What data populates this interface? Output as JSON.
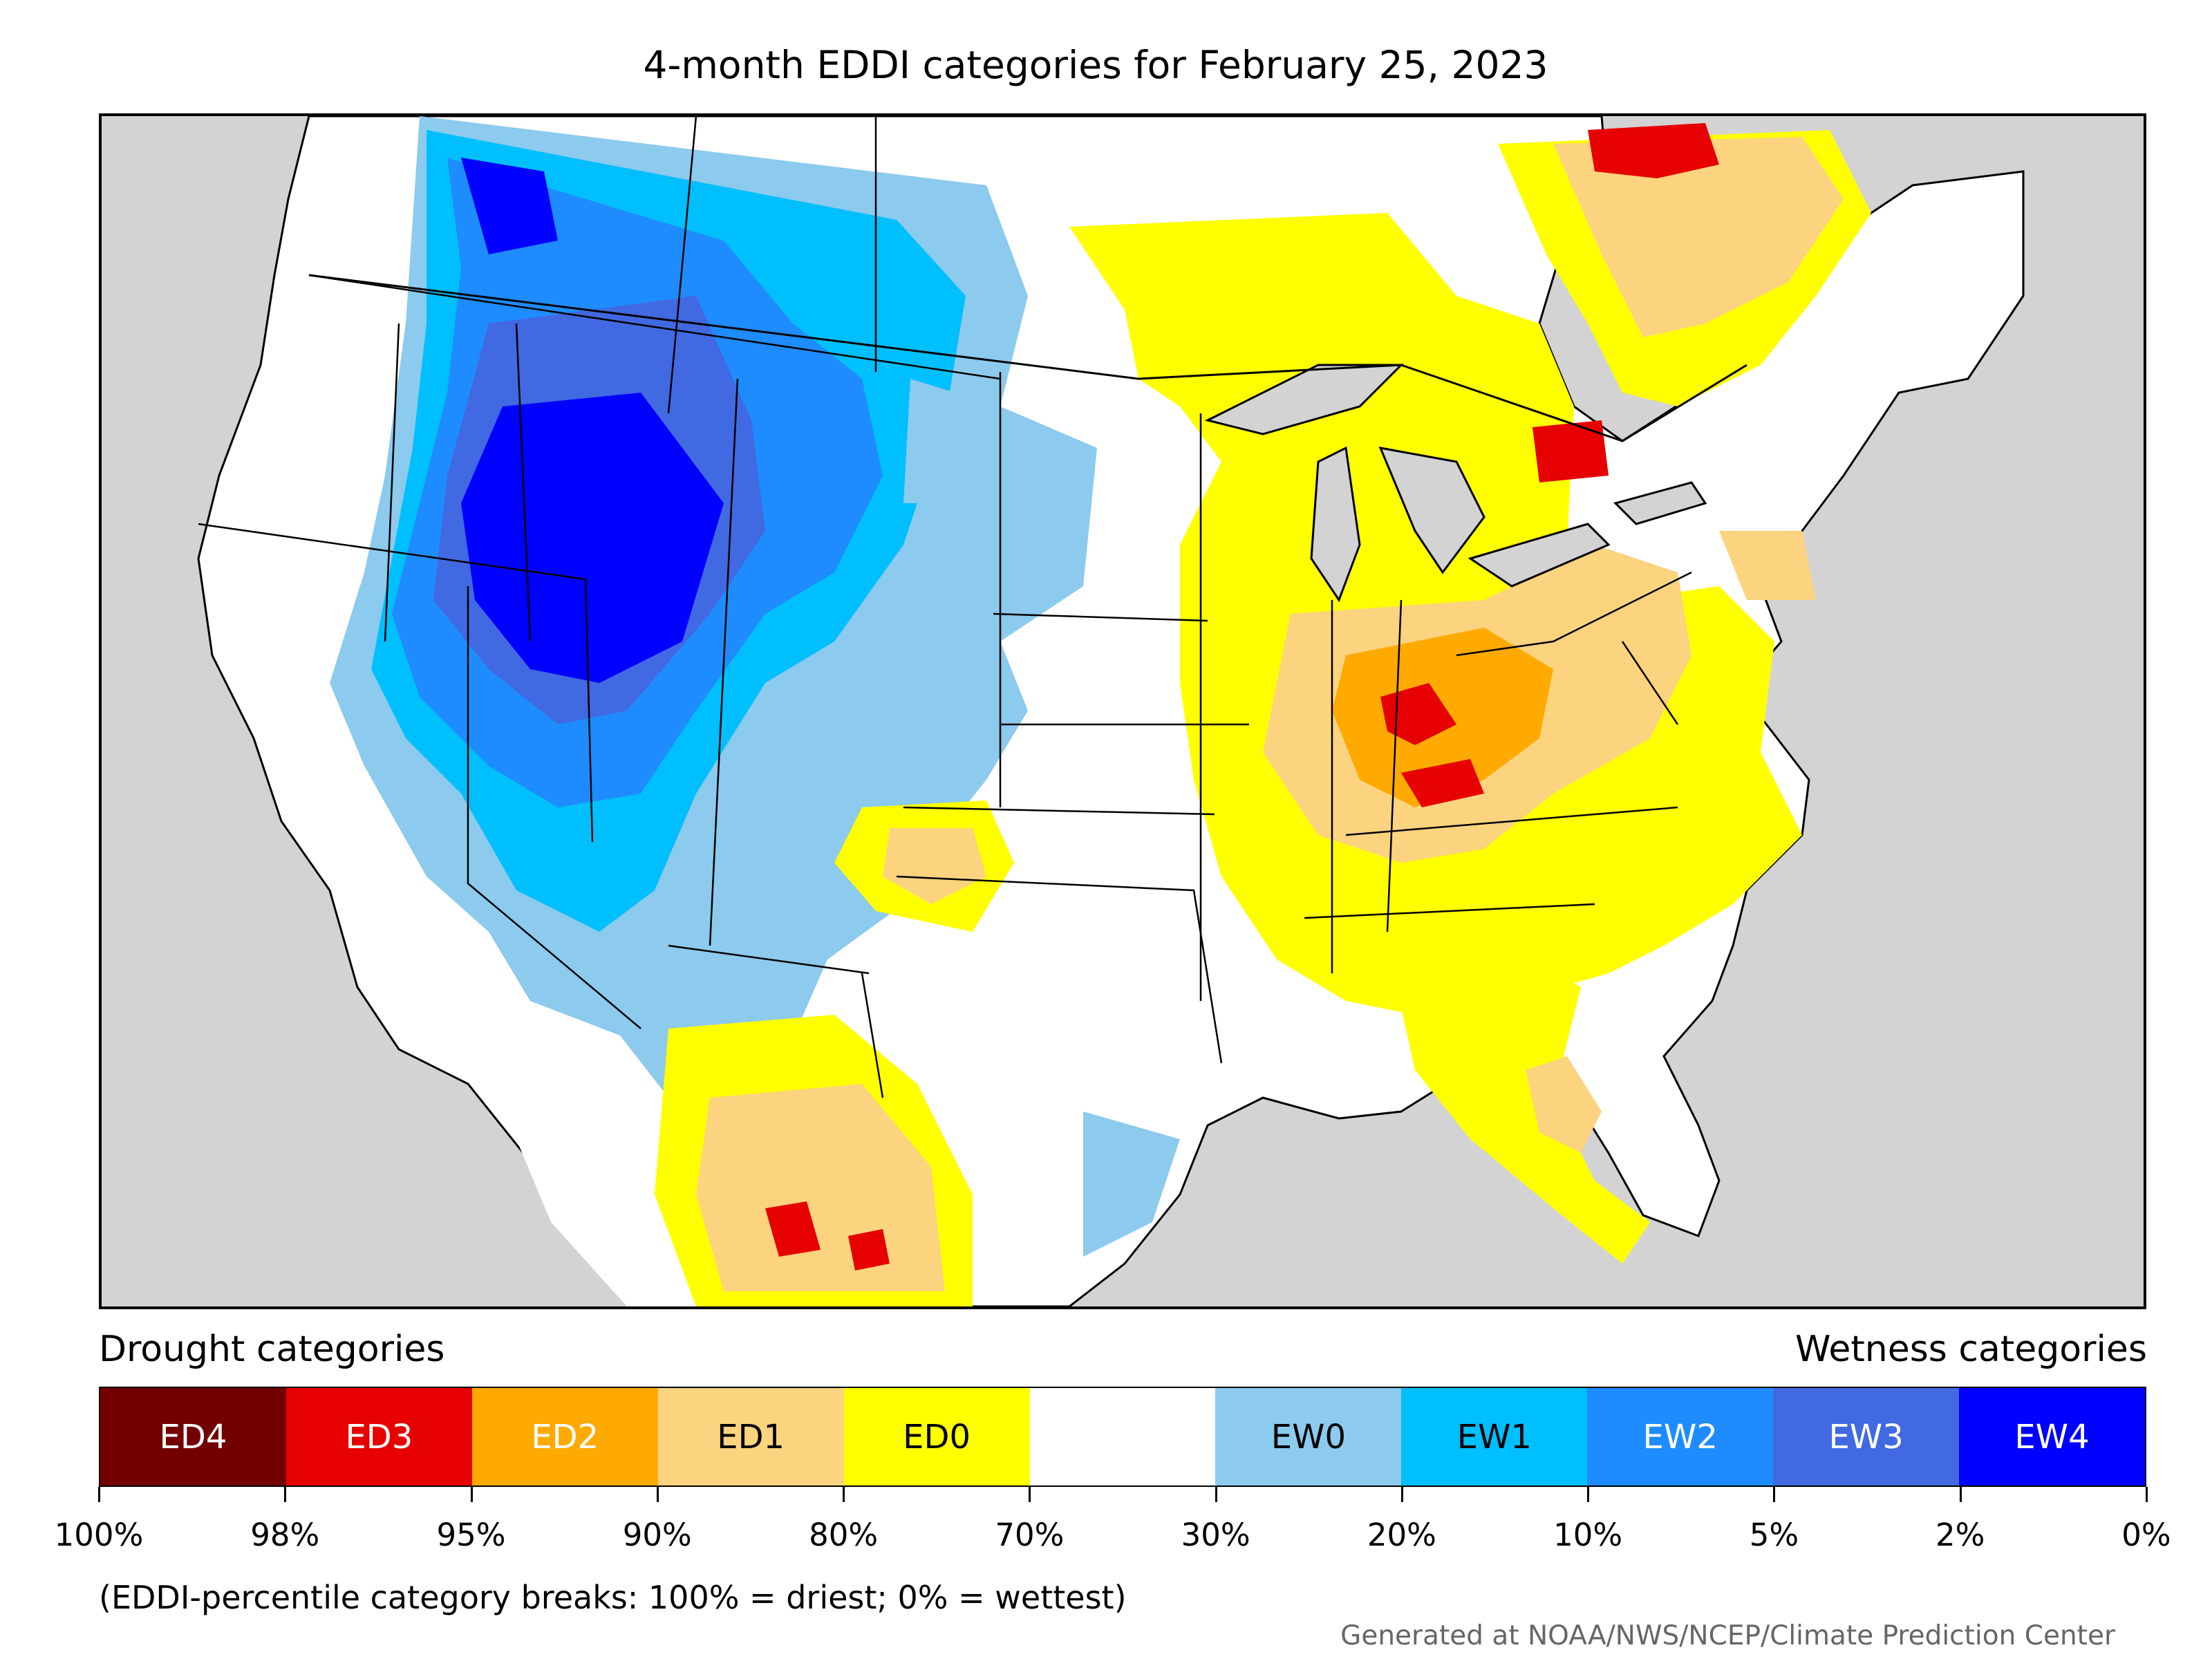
{
  "title": "4-month EDDI categories for February 25, 2023",
  "legend": {
    "drought_label": "Drought categories",
    "wetness_label": "Wetness categories",
    "categories": [
      {
        "label": "ED4",
        "color": "#730000",
        "text_color": "#ffffff"
      },
      {
        "label": "ED3",
        "color": "#e60000",
        "text_color": "#ffffff"
      },
      {
        "label": "ED2",
        "color": "#ffaa00",
        "text_color": "#ffffff"
      },
      {
        "label": "ED1",
        "color": "#fcd37f",
        "text_color": "#000000"
      },
      {
        "label": "ED0",
        "color": "#ffff00",
        "text_color": "#000000"
      },
      {
        "label": "",
        "color": "#ffffff",
        "text_color": "#000000"
      },
      {
        "label": "EW0",
        "color": "#8ccaee",
        "text_color": "#000000"
      },
      {
        "label": "EW1",
        "color": "#00bfff",
        "text_color": "#000000"
      },
      {
        "label": "EW2",
        "color": "#1e8cff",
        "text_color": "#ffffff"
      },
      {
        "label": "EW3",
        "color": "#4169e1",
        "text_color": "#ffffff"
      },
      {
        "label": "EW4",
        "color": "#0000ff",
        "text_color": "#ffffff"
      }
    ],
    "ticks": [
      "100%",
      "98%",
      "95%",
      "90%",
      "80%",
      "70%",
      "30%",
      "20%",
      "10%",
      "5%",
      "2%",
      "0%"
    ]
  },
  "note": "(EDDI-percentile category breaks: 100% = driest; 0% = wettest)",
  "credit": "Generated at NOAA/NWS/NCEP/Climate Prediction Center",
  "colors": {
    "background_gray": "#d3d3d3",
    "land_white": "#ffffff",
    "lakes_gray": "#d3d3d3"
  }
}
